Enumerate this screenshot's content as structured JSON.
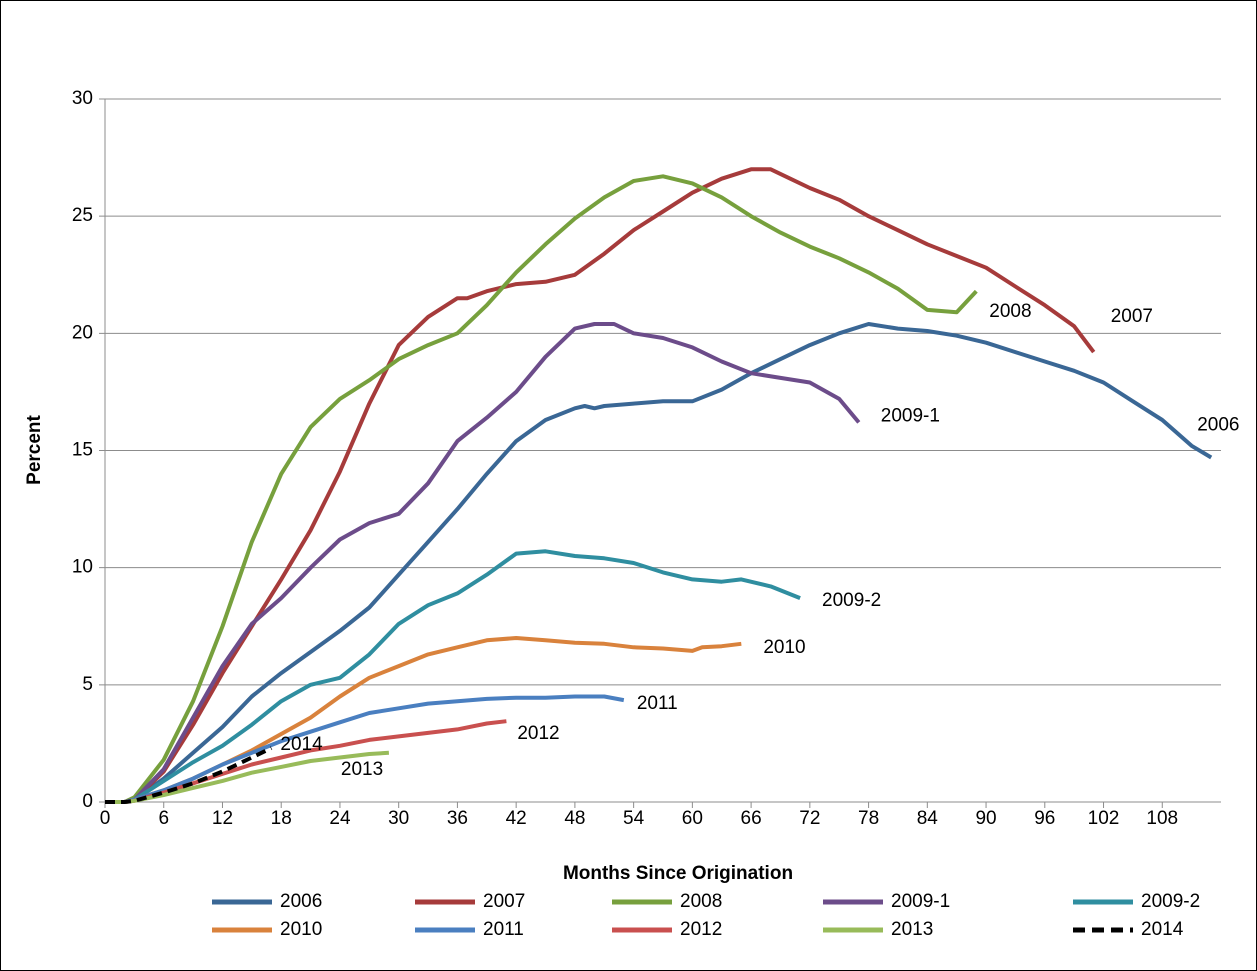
{
  "chart_data": {
    "type": "line",
    "x_label": "Months Since Origination",
    "y_label": "Percent",
    "xlim": [
      0,
      114
    ],
    "ylim": [
      0,
      30
    ],
    "xticks": [
      0,
      6,
      12,
      18,
      24,
      30,
      36,
      42,
      48,
      54,
      60,
      66,
      72,
      78,
      84,
      90,
      96,
      102,
      108
    ],
    "yticks": [
      0,
      5,
      10,
      15,
      20,
      25,
      30
    ],
    "grid": true,
    "series": [
      {
        "name": "2006",
        "color": "#3a6795",
        "x": [
          0,
          2,
          3,
          6,
          9,
          12,
          15,
          18,
          21,
          24,
          27,
          30,
          33,
          36,
          39,
          42,
          45,
          48,
          49,
          50,
          51,
          54,
          57,
          60,
          63,
          66,
          69,
          72,
          75,
          78,
          81,
          84,
          87,
          90,
          93,
          96,
          99,
          102,
          105,
          108,
          111,
          113
        ],
        "values": [
          0,
          0,
          0.1,
          1.0,
          2.1,
          3.2,
          4.5,
          5.5,
          6.4,
          7.3,
          8.3,
          9.7,
          11.1,
          12.5,
          14.0,
          15.4,
          16.3,
          16.8,
          16.9,
          16.8,
          16.9,
          17.0,
          17.1,
          17.1,
          17.6,
          18.3,
          18.9,
          19.5,
          20.0,
          20.4,
          20.2,
          20.1,
          19.9,
          19.6,
          19.2,
          18.8,
          18.4,
          17.9,
          17.1,
          16.3,
          15.2,
          14.7
        ]
      },
      {
        "name": "2007",
        "color": "#a63b3b",
        "x": [
          0,
          2,
          3,
          6,
          9,
          12,
          15,
          18,
          21,
          24,
          27,
          30,
          33,
          36,
          37,
          39,
          42,
          45,
          48,
          51,
          54,
          57,
          60,
          63,
          66,
          68,
          70,
          72,
          75,
          78,
          81,
          84,
          87,
          90,
          93,
          96,
          99,
          101
        ],
        "values": [
          0,
          0,
          0.1,
          1.3,
          3.3,
          5.5,
          7.5,
          9.5,
          11.6,
          14.1,
          17.0,
          19.5,
          20.7,
          21.5,
          21.5,
          21.8,
          22.1,
          22.2,
          22.5,
          23.4,
          24.4,
          25.2,
          26.0,
          26.6,
          27.0,
          27.0,
          26.6,
          26.2,
          25.7,
          25.0,
          24.4,
          23.8,
          23.3,
          22.8,
          22.0,
          21.2,
          20.3,
          19.2
        ]
      },
      {
        "name": "2008",
        "color": "#77a03d",
        "x": [
          0,
          2,
          3,
          6,
          9,
          12,
          15,
          18,
          21,
          24,
          27,
          30,
          33,
          36,
          39,
          42,
          45,
          48,
          51,
          54,
          57,
          60,
          63,
          66,
          69,
          72,
          75,
          78,
          81,
          84,
          87,
          89
        ],
        "values": [
          0,
          0,
          0.2,
          1.8,
          4.3,
          7.5,
          11.1,
          14.0,
          16.0,
          17.2,
          18.0,
          18.9,
          19.5,
          20.0,
          21.2,
          22.6,
          23.8,
          24.9,
          25.8,
          26.5,
          26.7,
          26.4,
          25.8,
          25.0,
          24.3,
          23.7,
          23.2,
          22.6,
          21.9,
          21.0,
          20.9,
          21.8
        ]
      },
      {
        "name": "2009-1",
        "color": "#6c4c8a",
        "x": [
          0,
          2,
          3,
          6,
          9,
          12,
          15,
          18,
          21,
          24,
          27,
          30,
          33,
          36,
          39,
          42,
          45,
          48,
          50,
          52,
          54,
          57,
          60,
          63,
          66,
          69,
          72,
          75,
          77
        ],
        "values": [
          0,
          0,
          0.1,
          1.4,
          3.6,
          5.8,
          7.6,
          8.7,
          10.0,
          11.2,
          11.9,
          12.3,
          13.6,
          15.4,
          16.4,
          17.5,
          19.0,
          20.2,
          20.4,
          20.4,
          20.0,
          19.8,
          19.4,
          18.8,
          18.3,
          18.1,
          17.9,
          17.2,
          16.2
        ]
      },
      {
        "name": "2009-2",
        "color": "#2f8ea0",
        "x": [
          0,
          2,
          3,
          6,
          9,
          12,
          15,
          18,
          21,
          24,
          27,
          30,
          33,
          36,
          39,
          42,
          45,
          48,
          51,
          54,
          57,
          60,
          63,
          65,
          68,
          71
        ],
        "values": [
          0,
          0,
          0.1,
          0.9,
          1.7,
          2.4,
          3.3,
          4.3,
          5.0,
          5.3,
          6.3,
          7.6,
          8.4,
          8.9,
          9.7,
          10.6,
          10.7,
          10.5,
          10.4,
          10.2,
          9.8,
          9.5,
          9.4,
          9.5,
          9.2,
          8.7
        ]
      },
      {
        "name": "2010",
        "color": "#d9823c",
        "x": [
          0,
          2,
          3,
          6,
          9,
          12,
          15,
          18,
          21,
          24,
          27,
          30,
          33,
          36,
          39,
          42,
          45,
          48,
          51,
          54,
          57,
          60,
          61,
          63,
          65
        ],
        "values": [
          0,
          0,
          0.1,
          0.5,
          1.0,
          1.6,
          2.2,
          2.9,
          3.6,
          4.5,
          5.3,
          5.8,
          6.3,
          6.6,
          6.9,
          7.0,
          6.9,
          6.8,
          6.75,
          6.6,
          6.55,
          6.45,
          6.6,
          6.65,
          6.75
        ]
      },
      {
        "name": "2011",
        "color": "#4a7fc0",
        "x": [
          0,
          2,
          3,
          6,
          9,
          12,
          15,
          18,
          21,
          24,
          27,
          30,
          33,
          36,
          39,
          42,
          45,
          48,
          51,
          53
        ],
        "values": [
          0,
          0,
          0.1,
          0.5,
          1.0,
          1.6,
          2.1,
          2.6,
          3.0,
          3.4,
          3.8,
          4.0,
          4.2,
          4.3,
          4.4,
          4.45,
          4.45,
          4.5,
          4.5,
          4.35
        ]
      },
      {
        "name": "2012",
        "color": "#c9504f",
        "x": [
          0,
          2,
          3,
          6,
          9,
          12,
          15,
          18,
          21,
          24,
          27,
          30,
          33,
          36,
          39,
          41
        ],
        "values": [
          0,
          0,
          0.05,
          0.4,
          0.8,
          1.2,
          1.6,
          1.9,
          2.2,
          2.4,
          2.65,
          2.8,
          2.95,
          3.1,
          3.35,
          3.45
        ]
      },
      {
        "name": "2013",
        "color": "#98bb5a",
        "x": [
          0,
          2,
          3,
          6,
          9,
          12,
          15,
          18,
          21,
          24,
          27,
          29
        ],
        "values": [
          0,
          0,
          0.05,
          0.3,
          0.6,
          0.9,
          1.25,
          1.5,
          1.75,
          1.9,
          2.05,
          2.1
        ]
      },
      {
        "name": "2014",
        "color": "#000000",
        "dashed": true,
        "x": [
          0,
          2,
          3,
          6,
          9,
          12,
          15,
          17
        ],
        "values": [
          0,
          0,
          0.05,
          0.4,
          0.8,
          1.3,
          1.9,
          2.3
        ]
      }
    ]
  }
}
